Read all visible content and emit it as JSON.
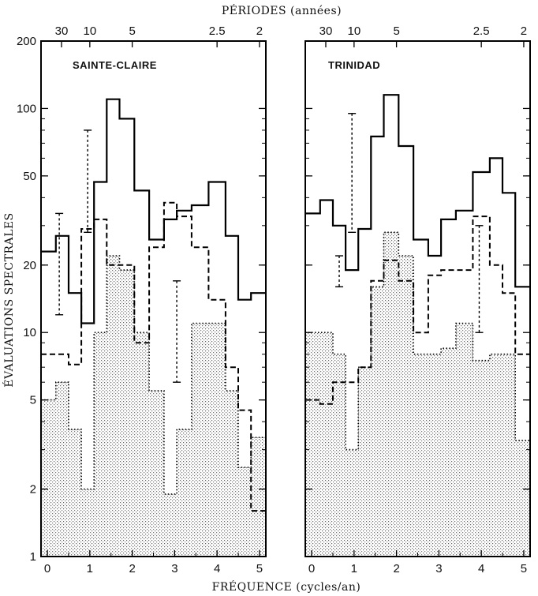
{
  "figure": {
    "top_title": "PÉRIODES (années)",
    "x_title": "FRÉQUENCE (cycles/an)",
    "y_title": "ÉVALUATIONS SPECTRALES"
  },
  "chart_data": [
    {
      "type": "step",
      "title": "SAINTE-CLAIRE",
      "xlabel": "FRÉQUENCE (cycles/an)",
      "ylabel": "ÉVALUATIONS SPECTRALES",
      "top_axis_label": "PÉRIODES (années)",
      "y_scale": "log",
      "ylim": [
        1,
        200
      ],
      "xlim": [
        -0.15,
        5.15
      ],
      "x_ticks": [
        0,
        1,
        2,
        3,
        4,
        5
      ],
      "y_ticks": [
        1,
        2,
        5,
        10,
        20,
        50,
        100,
        200
      ],
      "period_ticks": [
        30,
        10,
        5,
        2.5,
        2
      ],
      "bin_edges": [
        -0.15,
        0.2,
        0.5,
        0.8,
        1.1,
        1.4,
        1.7,
        2.05,
        2.4,
        2.75,
        3.05,
        3.4,
        3.8,
        4.2,
        4.5,
        4.8,
        5.15
      ],
      "series": [
        {
          "style": "solid",
          "values": [
            23,
            27,
            15,
            11,
            47,
            110,
            90,
            43,
            26,
            32,
            35,
            37,
            47,
            27,
            14,
            15
          ]
        },
        {
          "style": "dashed",
          "values": [
            8,
            8,
            7.2,
            29,
            32,
            20,
            20,
            9,
            24,
            38,
            33,
            24,
            14,
            7,
            4.5,
            1.6
          ]
        },
        {
          "style": "dotted",
          "values": [
            5,
            6,
            3.7,
            2,
            10,
            22,
            19,
            10,
            5.5,
            1.9,
            3.7,
            11,
            11,
            5.5,
            2.5,
            3.4
          ]
        }
      ],
      "confidence_bars": [
        {
          "x": 0.28,
          "low": 12,
          "high": 34
        },
        {
          "x": 0.95,
          "low": 28,
          "high": 80
        },
        {
          "x": 3.05,
          "low": 6,
          "high": 17
        }
      ]
    },
    {
      "type": "step",
      "title": "TRINIDAD",
      "xlabel": "FRÉQUENCE (cycles/an)",
      "ylabel": "ÉVALUATIONS SPECTRALES",
      "top_axis_label": "PÉRIODES (années)",
      "y_scale": "log",
      "ylim": [
        1,
        200
      ],
      "xlim": [
        -0.15,
        5.15
      ],
      "x_ticks": [
        0,
        1,
        2,
        3,
        4,
        5
      ],
      "y_ticks": [
        1,
        2,
        5,
        10,
        20,
        50,
        100,
        200
      ],
      "period_ticks": [
        30,
        10,
        5,
        2.5,
        2
      ],
      "bin_edges": [
        -0.15,
        0.2,
        0.5,
        0.8,
        1.1,
        1.4,
        1.7,
        2.05,
        2.4,
        2.75,
        3.05,
        3.4,
        3.8,
        4.2,
        4.5,
        4.8,
        5.15
      ],
      "series": [
        {
          "style": "solid",
          "values": [
            34,
            39,
            30,
            19,
            29,
            75,
            115,
            68,
            26,
            22,
            32,
            35,
            52,
            60,
            42,
            16
          ]
        },
        {
          "style": "dashed",
          "values": [
            5,
            4.8,
            6,
            6,
            7,
            17,
            21,
            17,
            10,
            18,
            19,
            19,
            33,
            20,
            15,
            8
          ]
        },
        {
          "style": "dotted",
          "values": [
            10,
            10,
            8,
            3,
            7,
            16,
            28,
            22,
            8,
            8,
            8.5,
            11,
            7.5,
            8,
            8,
            3.3
          ]
        }
      ],
      "confidence_bars": [
        {
          "x": 0.65,
          "low": 16,
          "high": 22
        },
        {
          "x": 0.95,
          "low": 28,
          "high": 95
        },
        {
          "x": 3.95,
          "low": 10,
          "high": 30
        }
      ]
    }
  ]
}
